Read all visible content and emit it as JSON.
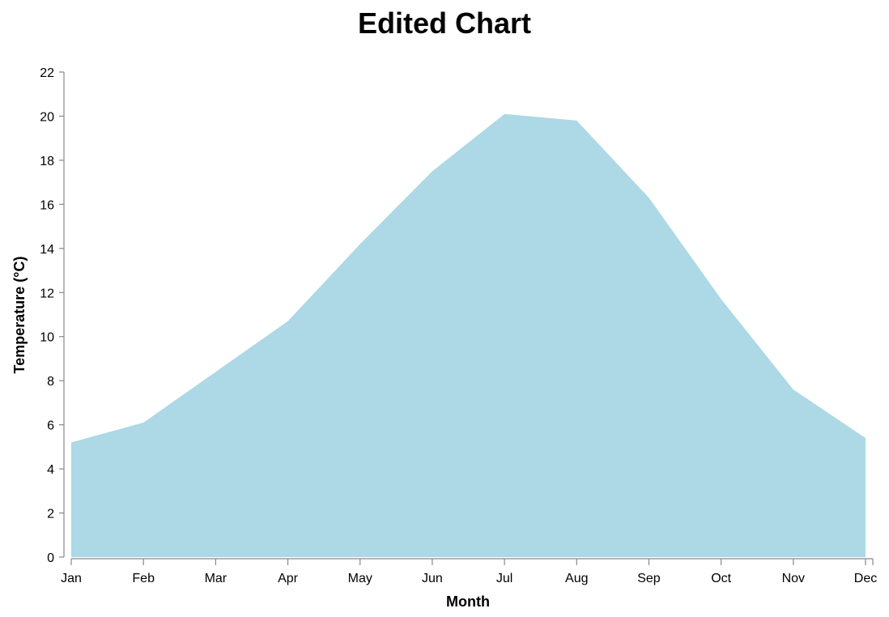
{
  "chart_data": {
    "type": "area",
    "title": "Edited Chart",
    "xlabel": "Month",
    "ylabel": "Temperature (°C)",
    "categories": [
      "Jan",
      "Feb",
      "Mar",
      "Apr",
      "May",
      "Jun",
      "Jul",
      "Aug",
      "Sep",
      "Oct",
      "Nov",
      "Dec"
    ],
    "values": [
      5.2,
      6.1,
      8.4,
      10.7,
      14.2,
      17.5,
      20.1,
      19.8,
      16.3,
      11.7,
      7.6,
      5.4
    ],
    "ylim": [
      0,
      22
    ],
    "yticks": [
      0,
      2,
      4,
      6,
      8,
      10,
      12,
      14,
      16,
      18,
      20,
      22
    ],
    "grid": false,
    "colors": {
      "area": "#add8e6",
      "axis": "#888888"
    }
  }
}
